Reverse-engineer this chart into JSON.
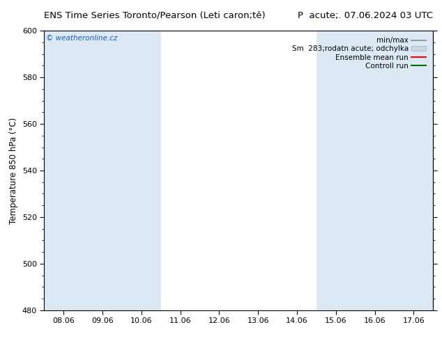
{
  "title_left": "ENS Time Series Toronto/Pearson (Leti caron;tě)",
  "title_right": "P  acute;. 07.06.2024 03 UTC",
  "ylabel": "Temperature 850 hPa (°C)",
  "ylim": [
    480,
    600
  ],
  "yticks": [
    480,
    500,
    520,
    540,
    560,
    580,
    600
  ],
  "x_labels": [
    "08.06",
    "09.06",
    "10.06",
    "11.06",
    "12.06",
    "13.06",
    "14.06",
    "15.06",
    "16.06",
    "17.06"
  ],
  "x_values": [
    0,
    1,
    2,
    3,
    4,
    5,
    6,
    7,
    8,
    9
  ],
  "shade_color": "#dce9f5",
  "watermark": "© weatheronline.cz",
  "watermark_color": "#1a5fb4",
  "legend_entries": [
    "min/max",
    "Sm  283;rodatn acute; odchylka",
    "Ensemble mean run",
    "Controll run"
  ],
  "bg_color": "#ffffff",
  "plot_bg_color": "#ffffff",
  "border_color": "#000000",
  "tick_color": "#000000",
  "title_fontsize": 9.5,
  "axis_label_fontsize": 8.5,
  "tick_fontsize": 8,
  "legend_fontsize": 7.5
}
